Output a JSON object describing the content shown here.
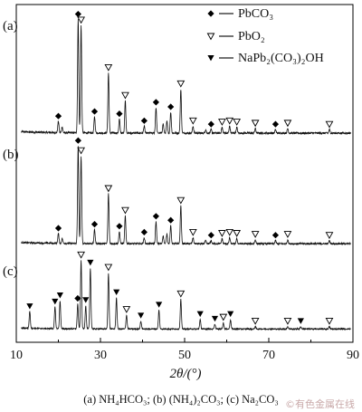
{
  "chart_data": {
    "type": "line",
    "xlabel": "2θ/(°)",
    "xlim": [
      10,
      90
    ],
    "xticks": [
      10,
      30,
      50,
      70,
      90
    ],
    "legend": {
      "placement": "top-right",
      "entries": [
        {
          "symbol": "filled-diamond",
          "label": "PbCO₃"
        },
        {
          "symbol": "open-triangle-down",
          "label": "PbO₂"
        },
        {
          "symbol": "filled-triangle-down",
          "label": "NaPb₂(CO₃)₂OH"
        }
      ]
    },
    "series": [
      {
        "label": "(a)",
        "peaks": [
          {
            "x": 20.0,
            "h": 0.1,
            "m": "filled-diamond"
          },
          {
            "x": 20.9,
            "h": 0.05
          },
          {
            "x": 24.7,
            "h": 0.98,
            "m": "filled-diamond"
          },
          {
            "x": 25.4,
            "h": 0.93,
            "m": "open-triangle-down"
          },
          {
            "x": 28.6,
            "h": 0.14,
            "m": "filled-diamond"
          },
          {
            "x": 31.9,
            "h": 0.52,
            "m": "open-triangle-down"
          },
          {
            "x": 34.5,
            "h": 0.12,
            "m": "filled-diamond"
          },
          {
            "x": 35.9,
            "h": 0.28,
            "m": "open-triangle-down"
          },
          {
            "x": 40.4,
            "h": 0.06,
            "m": "filled-diamond"
          },
          {
            "x": 43.2,
            "h": 0.22,
            "m": "filled-diamond"
          },
          {
            "x": 44.9,
            "h": 0.08
          },
          {
            "x": 45.8,
            "h": 0.1
          },
          {
            "x": 46.7,
            "h": 0.18,
            "m": "filled-diamond"
          },
          {
            "x": 49.1,
            "h": 0.38,
            "m": "open-triangle-down"
          },
          {
            "x": 52.0,
            "h": 0.06,
            "m": "open-triangle-down"
          },
          {
            "x": 55.0,
            "h": 0.03
          },
          {
            "x": 56.3,
            "h": 0.03,
            "m": "filled-diamond"
          },
          {
            "x": 58.9,
            "h": 0.05,
            "m": "open-triangle-down"
          },
          {
            "x": 60.7,
            "h": 0.06,
            "m": "open-triangle-down"
          },
          {
            "x": 62.4,
            "h": 0.05,
            "m": "open-triangle-down"
          },
          {
            "x": 66.8,
            "h": 0.04,
            "m": "open-triangle-down"
          },
          {
            "x": 71.6,
            "h": 0.03,
            "m": "filled-diamond"
          },
          {
            "x": 74.5,
            "h": 0.04,
            "m": "open-triangle-down"
          },
          {
            "x": 84.4,
            "h": 0.03,
            "m": "open-triangle-down"
          }
        ]
      },
      {
        "label": "(b)",
        "peaks": [
          {
            "x": 20.0,
            "h": 0.1,
            "m": "filled-diamond"
          },
          {
            "x": 20.9,
            "h": 0.05
          },
          {
            "x": 24.7,
            "h": 0.98,
            "m": "filled-diamond"
          },
          {
            "x": 25.4,
            "h": 0.88,
            "m": "open-triangle-down"
          },
          {
            "x": 28.6,
            "h": 0.14,
            "m": "filled-diamond"
          },
          {
            "x": 31.9,
            "h": 0.5,
            "m": "open-triangle-down"
          },
          {
            "x": 34.5,
            "h": 0.12,
            "m": "filled-diamond"
          },
          {
            "x": 35.9,
            "h": 0.28,
            "m": "open-triangle-down"
          },
          {
            "x": 40.4,
            "h": 0.06,
            "m": "filled-diamond"
          },
          {
            "x": 43.2,
            "h": 0.22,
            "m": "filled-diamond"
          },
          {
            "x": 44.9,
            "h": 0.08
          },
          {
            "x": 45.8,
            "h": 0.1
          },
          {
            "x": 46.7,
            "h": 0.18,
            "m": "filled-diamond"
          },
          {
            "x": 49.1,
            "h": 0.38,
            "m": "open-triangle-down"
          },
          {
            "x": 52.0,
            "h": 0.06,
            "m": "open-triangle-down"
          },
          {
            "x": 55.0,
            "h": 0.03
          },
          {
            "x": 56.3,
            "h": 0.03,
            "m": "filled-diamond"
          },
          {
            "x": 58.9,
            "h": 0.05,
            "m": "open-triangle-down"
          },
          {
            "x": 60.7,
            "h": 0.06,
            "m": "open-triangle-down"
          },
          {
            "x": 62.4,
            "h": 0.05,
            "m": "open-triangle-down"
          },
          {
            "x": 66.8,
            "h": 0.04,
            "m": "open-triangle-down"
          },
          {
            "x": 71.6,
            "h": 0.03,
            "m": "filled-diamond"
          },
          {
            "x": 74.5,
            "h": 0.04,
            "m": "open-triangle-down"
          },
          {
            "x": 84.4,
            "h": 0.03,
            "m": "open-triangle-down"
          }
        ]
      },
      {
        "label": "(c)",
        "peaks": [
          {
            "x": 13.2,
            "h": 0.22,
            "m": "filled-triangle-down"
          },
          {
            "x": 19.2,
            "h": 0.28,
            "m": "filled-triangle-down"
          },
          {
            "x": 20.4,
            "h": 0.36,
            "m": "filled-triangle-down"
          },
          {
            "x": 24.6,
            "h": 0.32,
            "m": "filled-diamond"
          },
          {
            "x": 25.4,
            "h": 0.88,
            "m": "open-triangle-down"
          },
          {
            "x": 26.5,
            "h": 0.3,
            "m": "filled-triangle-down"
          },
          {
            "x": 27.6,
            "h": 0.78,
            "m": "filled-triangle-down"
          },
          {
            "x": 31.9,
            "h": 0.72,
            "m": "open-triangle-down"
          },
          {
            "x": 33.8,
            "h": 0.4,
            "m": "filled-triangle-down"
          },
          {
            "x": 36.2,
            "h": 0.18,
            "m": "open-triangle-down"
          },
          {
            "x": 39.6,
            "h": 0.1,
            "m": "filled-triangle-down"
          },
          {
            "x": 43.9,
            "h": 0.24,
            "m": "filled-triangle-down"
          },
          {
            "x": 49.1,
            "h": 0.38,
            "m": "open-triangle-down"
          },
          {
            "x": 53.7,
            "h": 0.12,
            "m": "filled-triangle-down"
          },
          {
            "x": 57.2,
            "h": 0.06,
            "m": "filled-triangle-down"
          },
          {
            "x": 59.2,
            "h": 0.08,
            "m": "open-triangle-down"
          },
          {
            "x": 60.9,
            "h": 0.12,
            "m": "filled-triangle-down"
          },
          {
            "x": 66.8,
            "h": 0.03,
            "m": "open-triangle-down"
          },
          {
            "x": 74.5,
            "h": 0.03,
            "m": "open-triangle-down"
          },
          {
            "x": 77.6,
            "h": 0.03,
            "m": "filled-triangle-down"
          },
          {
            "x": 84.4,
            "h": 0.03,
            "m": "open-triangle-down"
          }
        ]
      }
    ],
    "caption": "(a) NH₄HCO₃; (b) (NH₄)₂CO₃; (c) Na₂CO₃",
    "watermark": "©有色金属在线"
  }
}
